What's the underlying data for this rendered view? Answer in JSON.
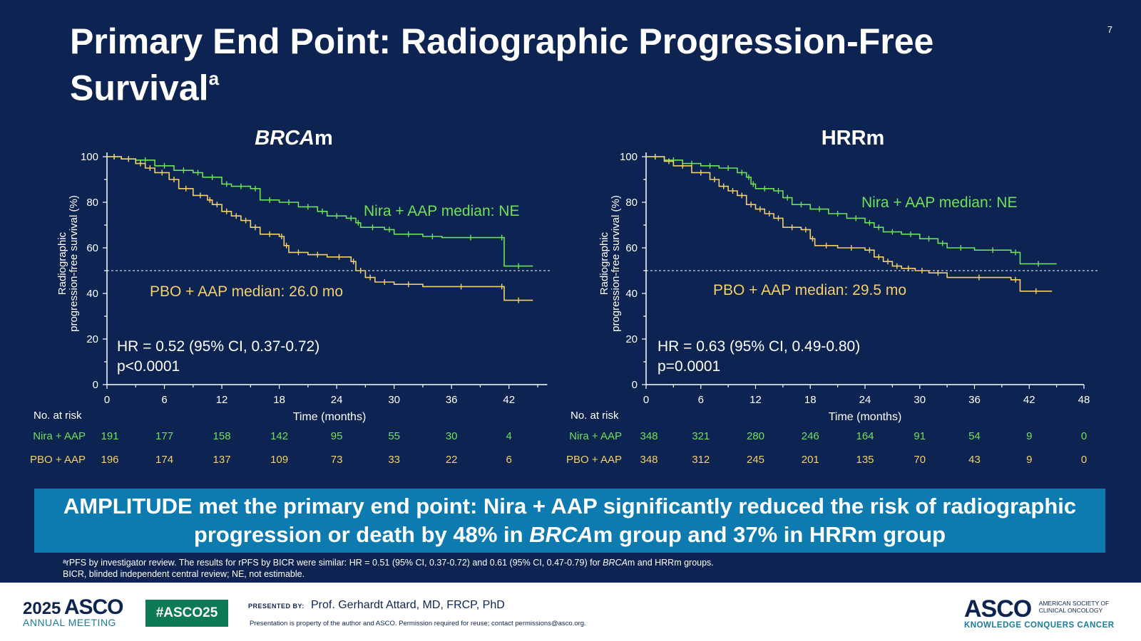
{
  "slide": {
    "title": "Primary End Point: Radiographic Progression-Free Survival",
    "title_sup": "a",
    "page_number": "7",
    "banner": {
      "pre": "AMPLITUDE met the primary end point: Nira + AAP significantly reduced the risk of radiographic progression or death by 48% in ",
      "italic": "BRCA",
      "post": "m group and 37% in HRRm group"
    },
    "footnote": {
      "line1_a": "ᵃrPFS by investigator review. The results for rPFS by BICR were similar: HR = 0.51 (95% CI, 0.37-0.72) and 0.61 (95% CI, 0.47-0.79) for ",
      "line1_italic": "BRCA",
      "line1_b": "m and HRRm groups.",
      "line2": "BICR, blinded independent central review; NE, not estimable."
    }
  },
  "footer": {
    "meeting_year": "2025",
    "meeting_brand": "ASCO",
    "meeting_name": "ANNUAL MEETING",
    "hashtag": "#ASCO25",
    "presented_by_label": "PRESENTED BY:",
    "presenter": "Prof. Gerhardt Attard, MD, FRCP, PhD",
    "property_note": "Presentation is property of the author and ASCO. Permission required for reuse; contact permissions@asco.org.",
    "org_brand": "ASCO",
    "org_line1": "AMERICAN SOCIETY OF",
    "org_line2": "CLINICAL ONCOLOGY",
    "tagline": "KNOWLEDGE CONQUERS CANCER"
  },
  "colors": {
    "nira": "#6ee05a",
    "pbo": "#f2cf6a",
    "background": "#0d2452",
    "banner": "#0e7bb0"
  },
  "chart_data": [
    {
      "type": "line",
      "title_italic": "BRCA",
      "title_rest": "m",
      "ylabel_line1": "Radiographic",
      "ylabel_line2": "progression-free survival (%)",
      "xlabel": "Time (months)",
      "xlim": [
        0,
        45
      ],
      "ylim": [
        0,
        100
      ],
      "x_ticks": [
        0,
        6,
        12,
        18,
        24,
        30,
        36,
        42
      ],
      "y_ticks": [
        0,
        20,
        40,
        60,
        80,
        100
      ],
      "reference_line_y": 50,
      "series": [
        {
          "key": "nira",
          "annotation": "Nira + AAP median: NE",
          "points": [
            [
              0,
              100
            ],
            [
              1.5,
              99
            ],
            [
              3,
              98.5
            ],
            [
              5,
              96
            ],
            [
              7,
              94
            ],
            [
              9,
              93
            ],
            [
              10,
              91
            ],
            [
              12,
              88
            ],
            [
              13,
              87
            ],
            [
              15,
              86
            ],
            [
              16,
              81
            ],
            [
              18,
              80
            ],
            [
              20,
              78
            ],
            [
              22,
              76
            ],
            [
              23,
              74
            ],
            [
              25,
              73
            ],
            [
              26,
              71
            ],
            [
              26.5,
              69
            ],
            [
              29,
              68
            ],
            [
              30,
              66
            ],
            [
              33,
              65
            ],
            [
              35,
              64.5
            ],
            [
              41,
              64.5
            ],
            [
              41.5,
              52
            ],
            [
              44.5,
              52
            ]
          ]
        },
        {
          "key": "pbo",
          "annotation": "PBO + AAP median: 26.0 mo",
          "points": [
            [
              0,
              100
            ],
            [
              1.5,
              99
            ],
            [
              3,
              97
            ],
            [
              4,
              95
            ],
            [
              5,
              93
            ],
            [
              6.5,
              90
            ],
            [
              7.5,
              86
            ],
            [
              9,
              83
            ],
            [
              10.5,
              81
            ],
            [
              11,
              79
            ],
            [
              12,
              76
            ],
            [
              13,
              74
            ],
            [
              14,
              72
            ],
            [
              15,
              69
            ],
            [
              16,
              66
            ],
            [
              18,
              65
            ],
            [
              18.5,
              61
            ],
            [
              19,
              58
            ],
            [
              21,
              57
            ],
            [
              23,
              56
            ],
            [
              25.5,
              54
            ],
            [
              26,
              50
            ],
            [
              27,
              47
            ],
            [
              28,
              45
            ],
            [
              30,
              44
            ],
            [
              33,
              43
            ],
            [
              41,
              43
            ],
            [
              41.5,
              37
            ],
            [
              44.5,
              37
            ]
          ]
        }
      ],
      "hr_line1": "HR = 0.52 (95% CI, 0.37-0.72)",
      "hr_line2": "p<0.0001",
      "risk_table": {
        "label": "No. at risk",
        "times": [
          0,
          6,
          12,
          18,
          24,
          30,
          36,
          42
        ],
        "rows": [
          {
            "key": "nira",
            "label": "Nira + AAP",
            "values": [
              "191",
              "177",
              "158",
              "142",
              "95",
              "55",
              "30",
              "4"
            ]
          },
          {
            "key": "pbo",
            "label": "PBO + AAP",
            "values": [
              "196",
              "174",
              "137",
              "109",
              "73",
              "33",
              "22",
              "6"
            ]
          }
        ]
      }
    },
    {
      "type": "line",
      "title_italic": "",
      "title_rest": "HRRm",
      "ylabel_line1": "Radiographic",
      "ylabel_line2": "progression-free survival (%)",
      "xlabel": "Time (months)",
      "xlim": [
        0,
        48
      ],
      "ylim": [
        0,
        100
      ],
      "x_ticks": [
        0,
        6,
        12,
        18,
        24,
        30,
        36,
        42,
        48
      ],
      "y_ticks": [
        0,
        20,
        40,
        60,
        80,
        100
      ],
      "reference_line_y": 50,
      "series": [
        {
          "key": "nira",
          "annotation": "Nira + AAP median: NE",
          "points": [
            [
              0,
              100
            ],
            [
              2,
              98.5
            ],
            [
              4,
              97
            ],
            [
              6,
              96
            ],
            [
              8,
              95
            ],
            [
              10,
              93
            ],
            [
              11,
              91
            ],
            [
              11.5,
              88
            ],
            [
              12,
              86
            ],
            [
              14,
              85
            ],
            [
              15,
              82
            ],
            [
              16,
              79
            ],
            [
              18,
              77
            ],
            [
              20,
              75
            ],
            [
              22,
              73
            ],
            [
              24,
              71
            ],
            [
              25,
              69
            ],
            [
              26,
              67
            ],
            [
              28,
              66
            ],
            [
              30,
              64
            ],
            [
              32,
              62
            ],
            [
              33,
              60
            ],
            [
              36,
              59
            ],
            [
              40,
              58
            ],
            [
              41,
              53
            ],
            [
              45,
              53
            ]
          ]
        },
        {
          "key": "pbo",
          "annotation": "PBO + AAP median: 29.5 mo",
          "points": [
            [
              0,
              100
            ],
            [
              2,
              98
            ],
            [
              3,
              96
            ],
            [
              5,
              93
            ],
            [
              7,
              90
            ],
            [
              8,
              87
            ],
            [
              9,
              85
            ],
            [
              10,
              83
            ],
            [
              11,
              79
            ],
            [
              12,
              77
            ],
            [
              13,
              75
            ],
            [
              14,
              73
            ],
            [
              15,
              69
            ],
            [
              17,
              68
            ],
            [
              18,
              64
            ],
            [
              18.5,
              61
            ],
            [
              21,
              60
            ],
            [
              24,
              59
            ],
            [
              25,
              56
            ],
            [
              26,
              54
            ],
            [
              27,
              52
            ],
            [
              28,
              51
            ],
            [
              29.5,
              50
            ],
            [
              31,
              49
            ],
            [
              33,
              47
            ],
            [
              40,
              46
            ],
            [
              41,
              41
            ],
            [
              44.5,
              41
            ]
          ]
        }
      ],
      "hr_line1": "HR = 0.63 (95% CI, 0.49-0.80)",
      "hr_line2": "p=0.0001",
      "risk_table": {
        "label": "No. at risk",
        "times": [
          0,
          6,
          12,
          18,
          24,
          30,
          36,
          42,
          48
        ],
        "rows": [
          {
            "key": "nira",
            "label": "Nira + AAP",
            "values": [
              "348",
              "321",
              "280",
              "246",
              "164",
              "91",
              "54",
              "9",
              "0"
            ]
          },
          {
            "key": "pbo",
            "label": "PBO + AAP",
            "values": [
              "348",
              "312",
              "245",
              "201",
              "135",
              "70",
              "43",
              "9",
              "0"
            ]
          }
        ]
      }
    }
  ]
}
